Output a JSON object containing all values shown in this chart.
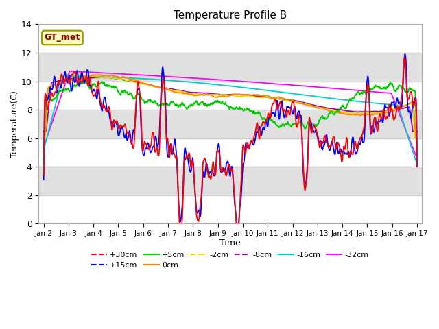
{
  "title": "Temperature Profile B",
  "xlabel": "Time",
  "ylabel": "Temperature(C)",
  "ylim": [
    0,
    14
  ],
  "annotation_text": "GT_met",
  "series_config": {
    "+30cm": {
      "color": "#ff0000",
      "lw": 1.3,
      "ls": "-"
    },
    "+15cm": {
      "color": "#0000ff",
      "lw": 1.3,
      "ls": "-"
    },
    "+5cm": {
      "color": "#00cc00",
      "lw": 1.3,
      "ls": "-"
    },
    "0cm": {
      "color": "#ff8800",
      "lw": 1.3,
      "ls": "-"
    },
    "-2cm": {
      "color": "#dddd00",
      "lw": 1.3,
      "ls": "-"
    },
    "-8cm": {
      "color": "#9900aa",
      "lw": 1.3,
      "ls": "-"
    },
    "-16cm": {
      "color": "#00cccc",
      "lw": 1.3,
      "ls": "-"
    },
    "-32cm": {
      "color": "#ff00ff",
      "lw": 1.3,
      "ls": "-"
    }
  },
  "legend_config": {
    "+30cm": {
      "color": "#ff0000",
      "lw": 1.5,
      "ls": "--"
    },
    "+15cm": {
      "color": "#0000ff",
      "lw": 1.5,
      "ls": "--"
    },
    "+5cm": {
      "color": "#00cc00",
      "lw": 1.5,
      "ls": "-"
    },
    "0cm": {
      "color": "#ff8800",
      "lw": 1.5,
      "ls": "-"
    },
    "-2cm": {
      "color": "#dddd00",
      "lw": 1.5,
      "ls": "--"
    },
    "-8cm": {
      "color": "#9900aa",
      "lw": 1.5,
      "ls": "--"
    },
    "-16cm": {
      "color": "#00cccc",
      "lw": 1.5,
      "ls": "-"
    },
    "-32cm": {
      "color": "#ff00ff",
      "lw": 1.5,
      "ls": "-"
    }
  },
  "xtick_labels": [
    "Jan 2",
    "Jan 3",
    "Jan 4",
    "Jan 5",
    "Jan 6",
    "Jan 7",
    "Jan 8",
    "Jan 9",
    "Jan 10",
    "Jan 11",
    "Jan 12",
    "Jan 13",
    "Jan 14",
    "Jan 15",
    "Jan 16",
    "Jan 17"
  ],
  "ytick_vals": [
    0,
    2,
    4,
    6,
    8,
    10,
    12,
    14
  ],
  "plot_bg": "#ffffff",
  "band_color": "#e0e0e0"
}
